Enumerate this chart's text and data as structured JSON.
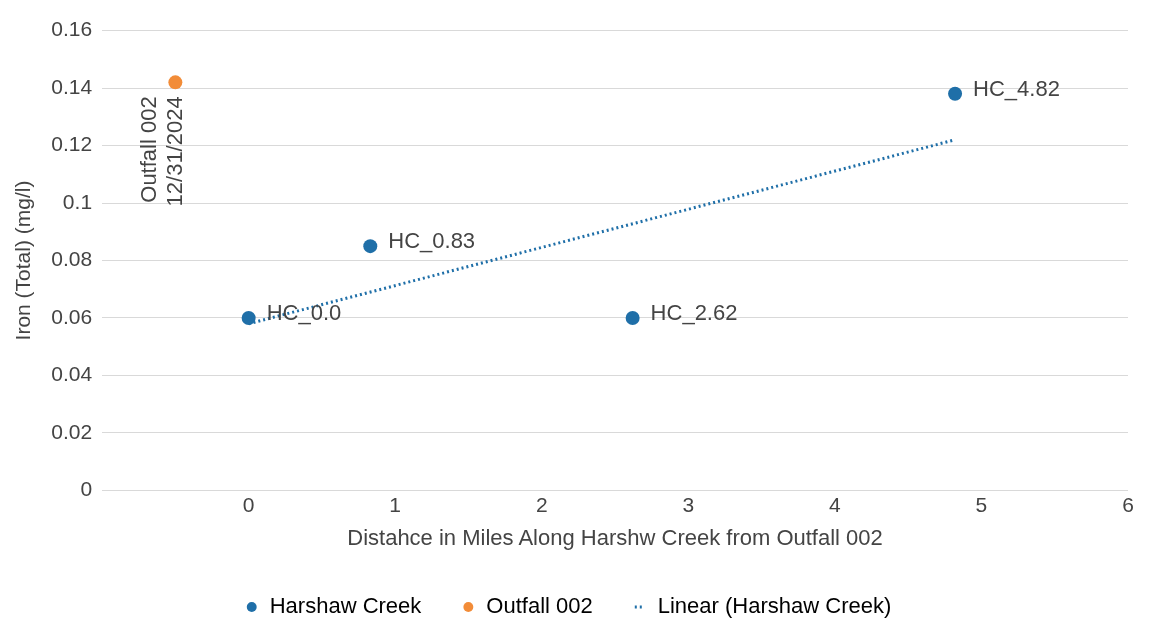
{
  "chart_data": {
    "type": "scatter",
    "xlabel": "Distahce in Miles Along Harshw Creek from Outfall 002",
    "ylabel": "Iron (Total) (mg/l)",
    "xlim": [
      -1,
      6
    ],
    "xticks": [
      0,
      1,
      2,
      3,
      4,
      5,
      6
    ],
    "ylim": [
      0,
      0.16
    ],
    "yticks": [
      0,
      0.02,
      0.04,
      0.06,
      0.08,
      0.1,
      0.12,
      0.14,
      0.16
    ],
    "grid": "y",
    "legend": "bottom",
    "marker": "circle",
    "series": [
      {
        "name": "Harshaw Creek",
        "type": "scatter",
        "color": "#1f6fa8",
        "x": [
          0,
          0.83,
          2.62,
          4.82
        ],
        "values": [
          0.06,
          0.085,
          0.06,
          0.138
        ]
      },
      {
        "name": "Outfall 002",
        "type": "scatter",
        "color": "#f28c38",
        "x": [
          -0.5
        ],
        "values": [
          0.142
        ]
      },
      {
        "name": "Linear (Harshaw Creek)",
        "type": "line",
        "color": "#1f6fa8",
        "line_style": "dotted",
        "marker": "none",
        "x": [
          0,
          4.82
        ],
        "values": [
          0.058,
          0.122
        ]
      }
    ],
    "annotations": [
      {
        "text": "HC_0.0",
        "x": 0,
        "y": 0.06
      },
      {
        "text": "HC_0.83",
        "x": 0.83,
        "y": 0.085
      },
      {
        "text": "HC_2.62",
        "x": 2.62,
        "y": 0.06
      },
      {
        "text": "HC_4.82",
        "x": 4.82,
        "y": 0.138
      },
      {
        "text": "Outfall 002\n12/31/2024",
        "x": -0.5,
        "y": 0.142
      }
    ]
  }
}
